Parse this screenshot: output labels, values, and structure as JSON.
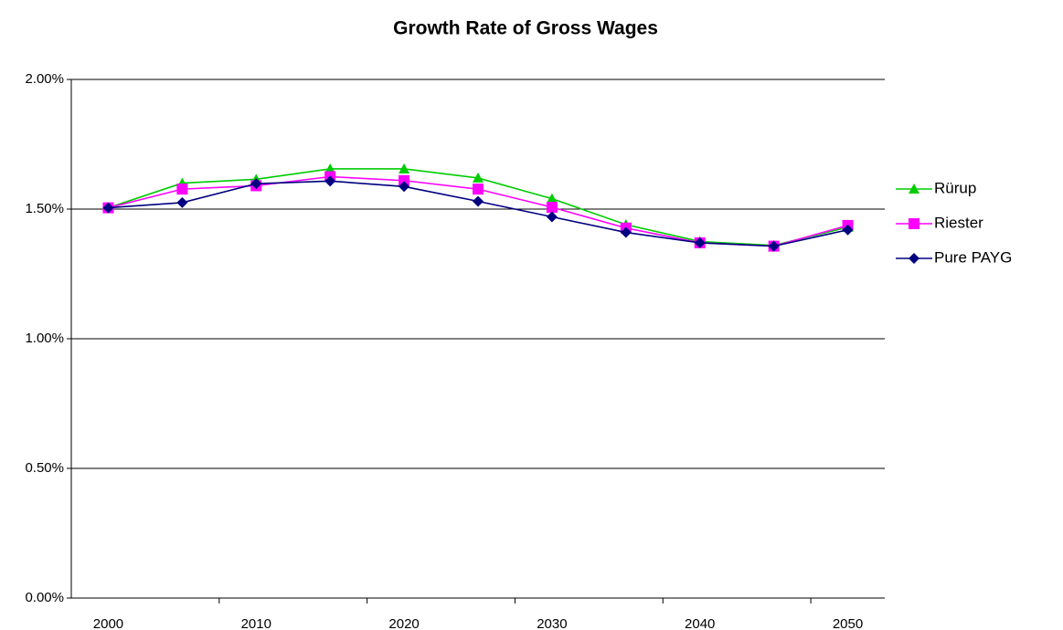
{
  "chart_data": {
    "type": "line",
    "title": "Growth Rate of Gross Wages",
    "categories": [
      "2000",
      null,
      "2010",
      null,
      "2020",
      null,
      "2030",
      null,
      "2040",
      null,
      "2050"
    ],
    "series": [
      {
        "name": "Rürup",
        "color": "#00cc00",
        "marker": "triangle",
        "values": [
          1.505,
          1.6,
          1.615,
          1.655,
          1.655,
          1.62,
          1.54,
          1.44,
          1.375,
          1.36,
          1.43
        ]
      },
      {
        "name": "Riester",
        "color": "#ff00ff",
        "marker": "square",
        "values": [
          1.505,
          1.577,
          1.59,
          1.625,
          1.61,
          1.577,
          1.507,
          1.427,
          1.37,
          1.357,
          1.437
        ]
      },
      {
        "name": "Pure PAYG",
        "color": "#000080",
        "marker": "diamond",
        "values": [
          1.505,
          1.525,
          1.598,
          1.608,
          1.587,
          1.53,
          1.47,
          1.41,
          1.37,
          1.357,
          1.42
        ]
      }
    ],
    "ylim": [
      0,
      2
    ],
    "yticks": [
      {
        "value": 0,
        "label": "0.00%"
      },
      {
        "value": 0.5,
        "label": "0.50%"
      },
      {
        "value": 1,
        "label": "1.00%"
      },
      {
        "value": 1.5,
        "label": "1.50%"
      },
      {
        "value": 2,
        "label": "2.00%"
      }
    ],
    "grid": true,
    "legend": "right"
  }
}
